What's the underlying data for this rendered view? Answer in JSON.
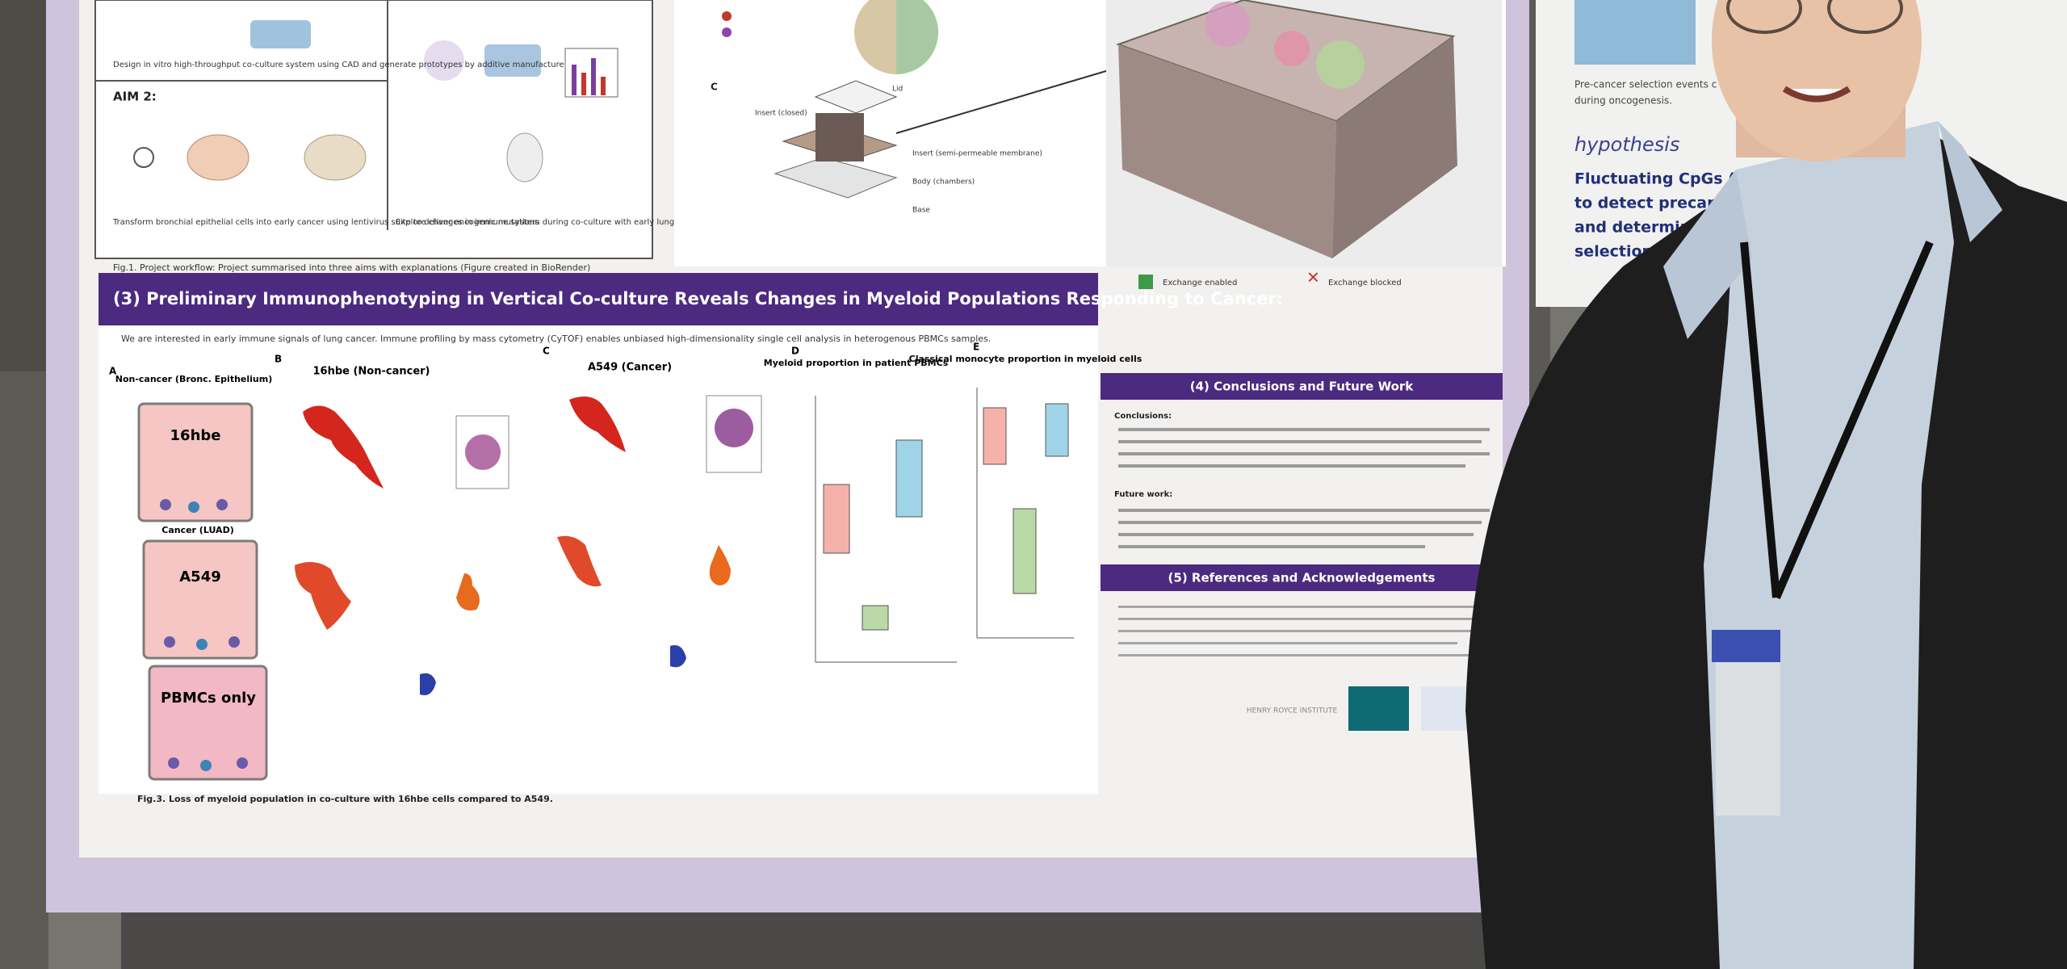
{
  "poster": {
    "workflow": {
      "aim2": "AIM 2:",
      "aim1_text": "Design in vitro high-throughput co-culture system using CAD and generate prototypes by additive manufacture",
      "aim2_text": "Transform bronchial epithelial cells into early cancer using lentivirus suite to deliver oncogenic mutations",
      "aim3_text": "Explore changes in immune system during co-culture with early lung cancer in multi-culture platform",
      "caption": "Fig.1. Project workflow: Project summarised into three aims with explanations (Figure created in BioRender)"
    },
    "design": {
      "panel": "C",
      "labels": [
        "Lid",
        "Insert (closed)",
        "Insert (semi-permeable membrane)",
        "Body (chambers)",
        "Base"
      ],
      "exchange_enabled": "Exchange enabled",
      "exchange_blocked": "Exchange blocked"
    },
    "section3": {
      "title": "(3) Preliminary Immunophenotyping in Vertical Co-culture Reveals Changes in Myeloid Populations Responding to Cancer:",
      "intro": "We are interested in early immune signals of lung cancer. Immune profiling by mass cytometry (CyTOF) enables unbiased high-dimensionality single cell analysis in heterogenous PBMCs samples.",
      "panels": [
        "A",
        "B",
        "C",
        "D",
        "E"
      ],
      "wells": [
        {
          "heading": "Non-cancer (Bronc. Epithelium)",
          "label": "16hbe"
        },
        {
          "heading": "Cancer (LUAD)",
          "label": "A549"
        },
        {
          "heading": "",
          "label": "PBMCs only"
        }
      ],
      "umap_titles": [
        "16hbe (Non-cancer)",
        "A549 (Cancer)"
      ],
      "plot_d_title": "Myeloid proportion in patient PBMCs",
      "plot_e_title": "Classical monocyte proportion in myeloid cells",
      "caption": "Fig.3. Loss of myeloid population in co-culture with 16hbe cells compared to A549."
    },
    "section4": {
      "title": "(4) Conclusions and Future Work",
      "conclusions": "Conclusions:",
      "future": "Future work:"
    },
    "section5": {
      "title": "(5) References and Acknowledgements"
    },
    "logo": "HENRY ROYCE INSTITUTE"
  },
  "right_poster": {
    "text1": "Pre-cancer selection events c",
    "text2": "during oncogenesis.",
    "hypothesis": "hypothesis",
    "lines": [
      "Fluctuating CpGs (fCpGs) c",
      "to detect precancer clo",
      "and determine the",
      "selection"
    ]
  }
}
